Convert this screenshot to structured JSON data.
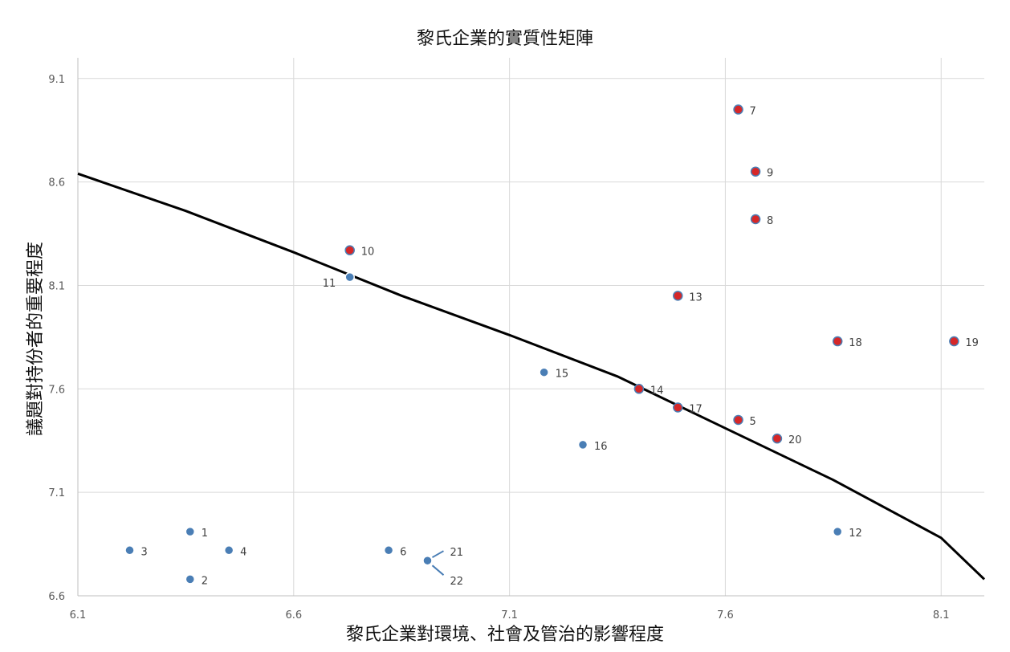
{
  "chart_data": {
    "type": "scatter",
    "title": "黎氏企業的實質性矩陣",
    "xlabel": "黎氏企業對環境、社會及管治的影響程度",
    "ylabel": "議題對持份者的重要程度",
    "xlim": [
      6.1,
      8.2
    ],
    "ylim": [
      6.6,
      9.2
    ],
    "x_ticks": [
      "6.1",
      "6.6",
      "7.1",
      "7.6",
      "8.1"
    ],
    "y_ticks": [
      "6.6",
      "7.1",
      "7.6",
      "8.1",
      "8.6",
      "9.1"
    ],
    "grid": true,
    "colors": {
      "material": "#d62728",
      "other": "#4a7eb5",
      "curve": "#000000",
      "grid": "#d9d9d9"
    },
    "points": [
      {
        "label": "1",
        "x": 6.36,
        "y": 6.91,
        "material": false
      },
      {
        "label": "2",
        "x": 6.36,
        "y": 6.68,
        "material": false
      },
      {
        "label": "3",
        "x": 6.22,
        "y": 6.82,
        "material": false
      },
      {
        "label": "4",
        "x": 6.45,
        "y": 6.82,
        "material": false
      },
      {
        "label": "5",
        "x": 7.63,
        "y": 7.45,
        "material": true
      },
      {
        "label": "6",
        "x": 6.82,
        "y": 6.82,
        "material": false
      },
      {
        "label": "7",
        "x": 7.63,
        "y": 8.95,
        "material": true
      },
      {
        "label": "8",
        "x": 7.67,
        "y": 8.42,
        "material": true
      },
      {
        "label": "9",
        "x": 7.67,
        "y": 8.65,
        "material": true
      },
      {
        "label": "10",
        "x": 6.73,
        "y": 8.27,
        "material": true
      },
      {
        "label": "11",
        "x": 6.73,
        "y": 8.14,
        "material": false
      },
      {
        "label": "12",
        "x": 7.86,
        "y": 6.91,
        "material": false
      },
      {
        "label": "13",
        "x": 7.49,
        "y": 8.05,
        "material": true
      },
      {
        "label": "14",
        "x": 7.4,
        "y": 7.6,
        "material": true
      },
      {
        "label": "15",
        "x": 7.18,
        "y": 7.68,
        "material": false
      },
      {
        "label": "16",
        "x": 7.27,
        "y": 7.33,
        "material": false
      },
      {
        "label": "17",
        "x": 7.49,
        "y": 7.51,
        "material": true
      },
      {
        "label": "18",
        "x": 7.86,
        "y": 7.83,
        "material": true
      },
      {
        "label": "19",
        "x": 8.13,
        "y": 7.83,
        "material": true
      },
      {
        "label": "20",
        "x": 7.72,
        "y": 7.36,
        "material": true
      },
      {
        "label": "21",
        "x": 6.91,
        "y": 6.77,
        "material": false
      },
      {
        "label": "22",
        "x": 6.91,
        "y": 6.77,
        "material": false
      }
    ],
    "curve": [
      [
        6.1,
        8.64
      ],
      [
        6.35,
        8.46
      ],
      [
        6.6,
        8.26
      ],
      [
        6.85,
        8.05
      ],
      [
        7.1,
        7.86
      ],
      [
        7.35,
        7.66
      ],
      [
        7.6,
        7.41
      ],
      [
        7.85,
        7.16
      ],
      [
        8.1,
        6.88
      ],
      [
        8.2,
        6.68
      ]
    ]
  }
}
